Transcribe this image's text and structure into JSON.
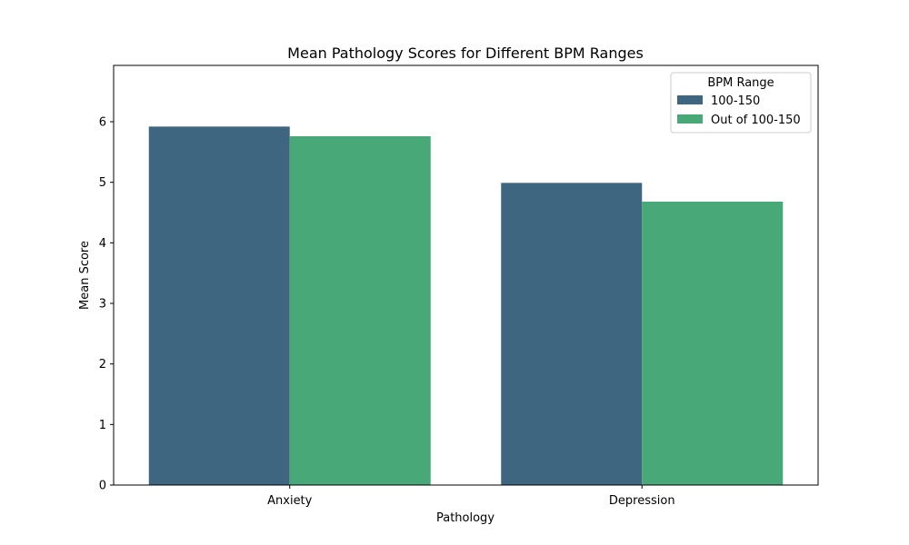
{
  "chart_data": {
    "type": "bar",
    "title": "Mean Pathology Scores for Different BPM Ranges",
    "xlabel": "Pathology",
    "ylabel": "Mean Score",
    "categories": [
      "Anxiety",
      "Depression"
    ],
    "series": [
      {
        "name": "100-150",
        "values": [
          5.92,
          4.99
        ],
        "color": "#3e6680"
      },
      {
        "name": "Out of 100-150",
        "values": [
          5.76,
          4.68
        ],
        "color": "#48a878"
      }
    ],
    "ylim": [
      0,
      6.93
    ],
    "yticks": [
      0,
      1,
      2,
      3,
      4,
      5,
      6
    ],
    "legend": {
      "title": "BPM Range",
      "placement": "top-right"
    },
    "grid": false
  }
}
